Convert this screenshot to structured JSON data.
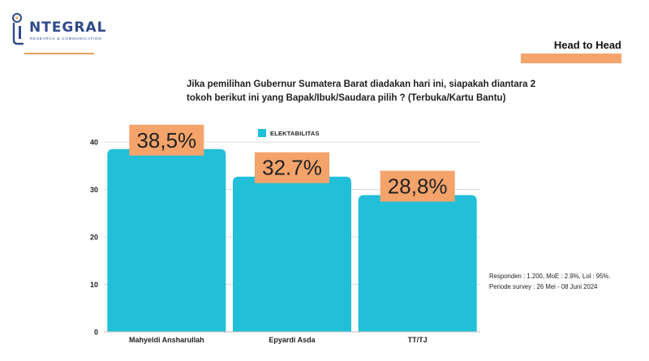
{
  "brand": {
    "name": "NTEGRAL",
    "tagline": "RESEARCH & COMMUNICATION"
  },
  "header": {
    "title": "Head to Head"
  },
  "question": {
    "line1": "Jika pemilihan Gubernur Sumatera Barat diadakan hari ini, siapakah diantara 2",
    "line2": "tokoh berikut ini yang Bapak/Ibuk/Saudara pilih ? (Terbuka/Kartu Bantu)"
  },
  "footnote": {
    "line1": "Responden : 1.200, MoE : 2.9%, Lol : 95%.",
    "line2": "Periode survey : 26 Mei - 08 Juni 2024"
  },
  "colors": {
    "bar": "#21bfd8",
    "label_box": "#f4a36b",
    "brand": "#2f4a8a",
    "accent": "#f0a05a"
  },
  "chart_data": {
    "type": "bar",
    "categories": [
      "Mahyeldi Ansharullah",
      "Epyardi Asda",
      "TT/TJ"
    ],
    "series": [
      {
        "name": "ELEKTABILITAS",
        "values": [
          38.5,
          32.7,
          28.8
        ],
        "labels": [
          "38,5%",
          "32.7%",
          "28,8%"
        ]
      }
    ],
    "ylim": [
      0,
      40
    ],
    "yticks": [
      "0",
      "10",
      "20",
      "30",
      "40"
    ],
    "grid": true,
    "legend": "top-center"
  }
}
